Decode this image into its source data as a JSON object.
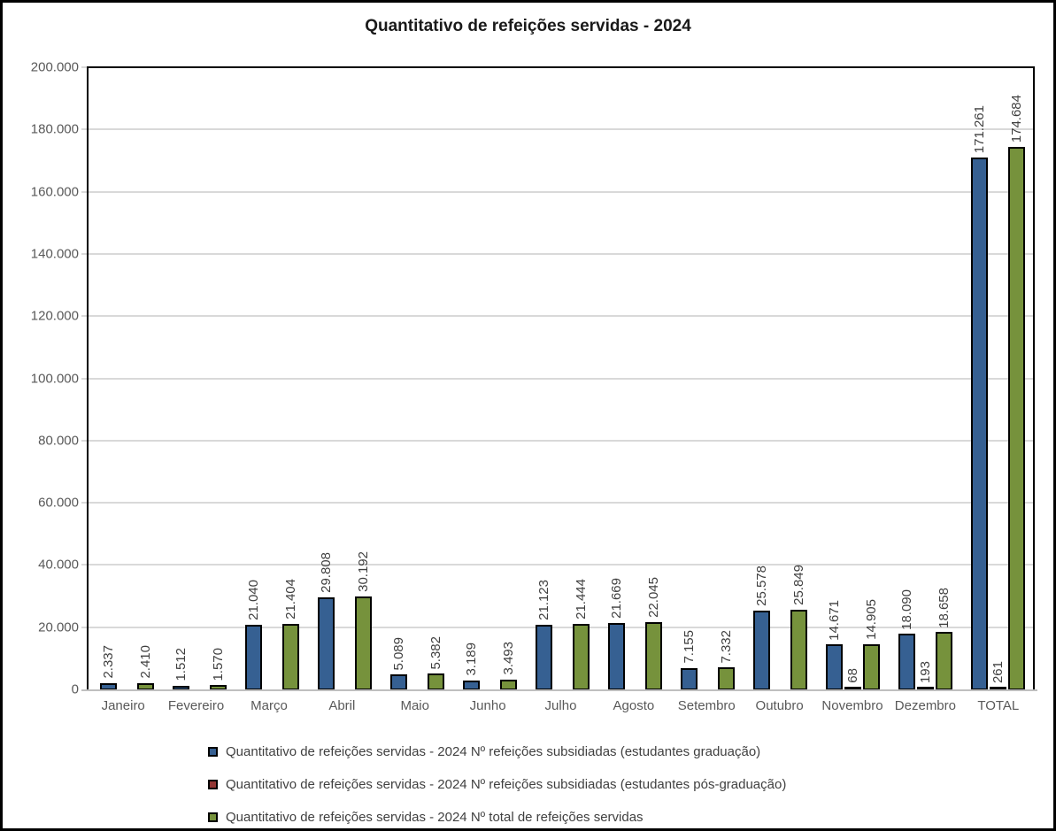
{
  "title": "Quantitativo de refeições servidas - 2024",
  "colors": {
    "series_blue": "#366092",
    "series_red": "#943634",
    "series_green": "#76923C",
    "bar_border": "#000000",
    "gridline": "#D9D9D9",
    "baseline": "#BFBFBF",
    "axis_text": "#595959",
    "data_label_text": "#3F3F3F",
    "legend_text": "#404040",
    "title_text": "#1A1A1A"
  },
  "chart_data": {
    "type": "bar",
    "title": "Quantitativo de refeições servidas - 2024",
    "xlabel": "",
    "ylabel": "",
    "ylim": [
      0,
      200000
    ],
    "ytick_step": 20000,
    "ytick_labels": [
      "0",
      "20.000",
      "40.000",
      "60.000",
      "80.000",
      "100.000",
      "120.000",
      "140.000",
      "160.000",
      "180.000",
      "200.000"
    ],
    "grid": true,
    "legend_position": "bottom",
    "categories": [
      "Janeiro",
      "Fevereiro",
      "Março",
      "Abril",
      "Maio",
      "Junho",
      "Julho",
      "Agosto",
      "Setembro",
      "Outubro",
      "Novembro",
      "Dezembro",
      "TOTAL"
    ],
    "series": [
      {
        "key": "graduacao",
        "name": "Quantitativo de refeições servidas - 2024 Nº refeições subsidiadas (estudantes graduação)",
        "color": "#366092",
        "values": [
          2337,
          1512,
          21040,
          29808,
          5089,
          3189,
          21123,
          21669,
          7155,
          25578,
          14671,
          18090,
          171261
        ],
        "labels": [
          "2.337",
          "1.512",
          "21.040",
          "29.808",
          "5.089",
          "3.189",
          "21.123",
          "21.669",
          "7.155",
          "25.578",
          "14.671",
          "18.090",
          "171.261"
        ]
      },
      {
        "key": "pos-graduacao",
        "name": "Quantitativo de refeições servidas - 2024 Nº refeições subsidiadas (estudantes pós-graduação)",
        "color": "#943634",
        "values": [
          0,
          0,
          0,
          0,
          0,
          0,
          0,
          0,
          0,
          0,
          68,
          193,
          261
        ],
        "labels": [
          "",
          "",
          "",
          "",
          "",
          "",
          "",
          "",
          "",
          "",
          "68",
          "193",
          "261"
        ]
      },
      {
        "key": "total",
        "name": "Quantitativo de refeições servidas - 2024 Nº total de refeições servidas",
        "color": "#76923C",
        "values": [
          2410,
          1570,
          21404,
          30192,
          5382,
          3493,
          21444,
          22045,
          7332,
          25849,
          14905,
          18658,
          174684
        ],
        "labels": [
          "2.410",
          "1.570",
          "21.404",
          "30.192",
          "5.382",
          "3.493",
          "21.444",
          "22.045",
          "7.332",
          "25.849",
          "14.905",
          "18.658",
          "174.684"
        ]
      }
    ]
  }
}
